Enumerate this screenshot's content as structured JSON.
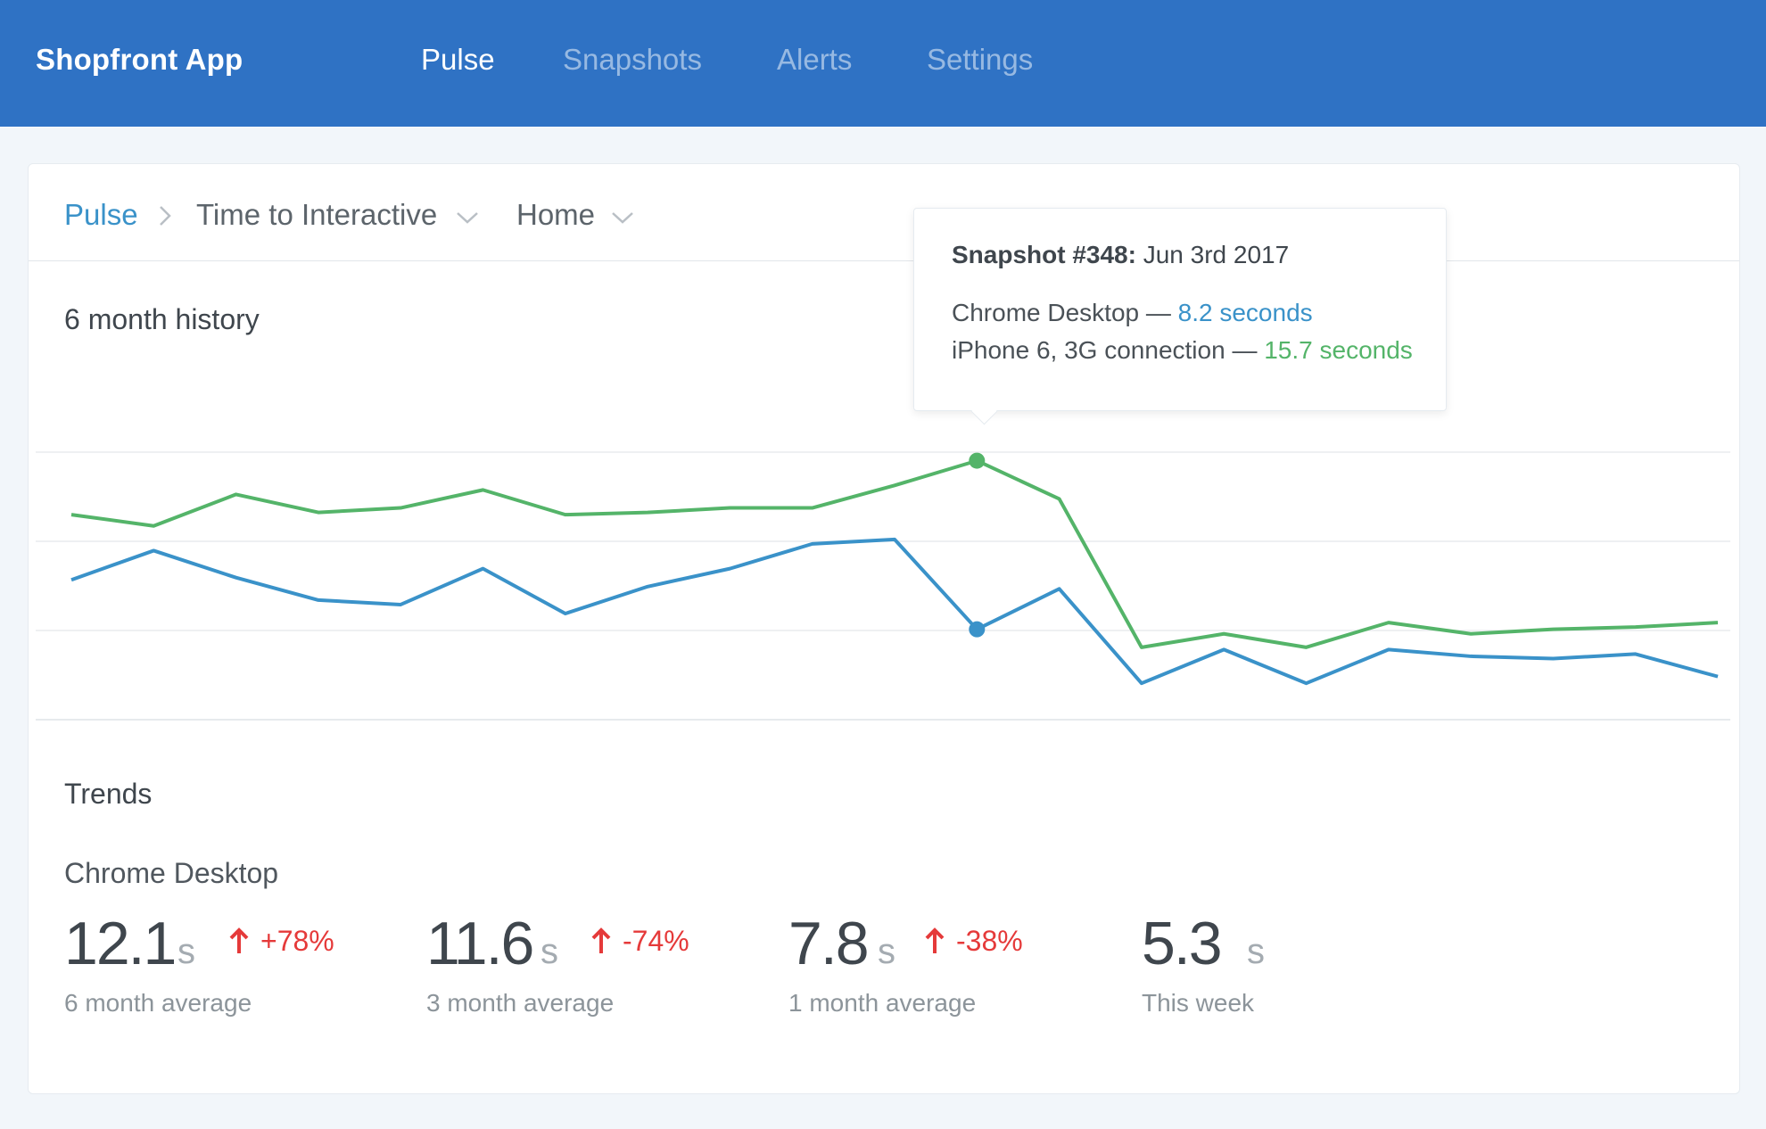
{
  "header": {
    "brand": "Shopfront App",
    "nav": [
      {
        "label": "Pulse",
        "active": true
      },
      {
        "label": "Snapshots",
        "active": false
      },
      {
        "label": "Alerts",
        "active": false
      },
      {
        "label": "Settings",
        "active": false
      }
    ]
  },
  "breadcrumb": {
    "root": "Pulse",
    "metric": "Time to Interactive",
    "page": "Home"
  },
  "history": {
    "title": "6 month history",
    "tooltip": {
      "title_bold": "Snapshot #348:",
      "title_date": "Jun 3rd 2017",
      "rows": [
        {
          "device": "Chrome Desktop —",
          "value": "8.2 seconds",
          "color": "#3a92c9"
        },
        {
          "device": "iPhone 6, 3G connection —",
          "value": "15.7 seconds",
          "color": "#54b469"
        }
      ]
    }
  },
  "chart_data": {
    "type": "line",
    "grid": true,
    "highlight_index": 11,
    "series": [
      {
        "name": "iPhone 6, 3G connection",
        "color": "#54b469",
        "values": [
          13.3,
          12.8,
          14.2,
          13.4,
          13.6,
          14.4,
          13.3,
          13.4,
          13.6,
          13.6,
          14.6,
          15.7,
          14.0,
          7.4,
          8.0,
          7.4,
          8.5,
          8.0,
          8.2,
          8.3,
          8.5
        ]
      },
      {
        "name": "Chrome Desktop",
        "color": "#3a92c9",
        "values": [
          10.4,
          11.7,
          10.5,
          9.5,
          9.3,
          10.9,
          8.9,
          10.1,
          10.9,
          12.0,
          12.2,
          8.2,
          10.0,
          5.8,
          7.3,
          5.8,
          7.3,
          7.0,
          6.9,
          7.1,
          6.1
        ]
      }
    ]
  },
  "trends": {
    "title": "Trends",
    "subtitle": "Chrome Desktop",
    "unit": "s",
    "metrics": [
      {
        "value": "12.1",
        "change": "+78%",
        "label": "6 month average"
      },
      {
        "value": "11.6",
        "change": "-74%",
        "label": "3 month average"
      },
      {
        "value": "7.8",
        "change": "-38%",
        "label": "1 month average"
      },
      {
        "value": "5.3",
        "change": "",
        "label": "This week"
      }
    ]
  }
}
